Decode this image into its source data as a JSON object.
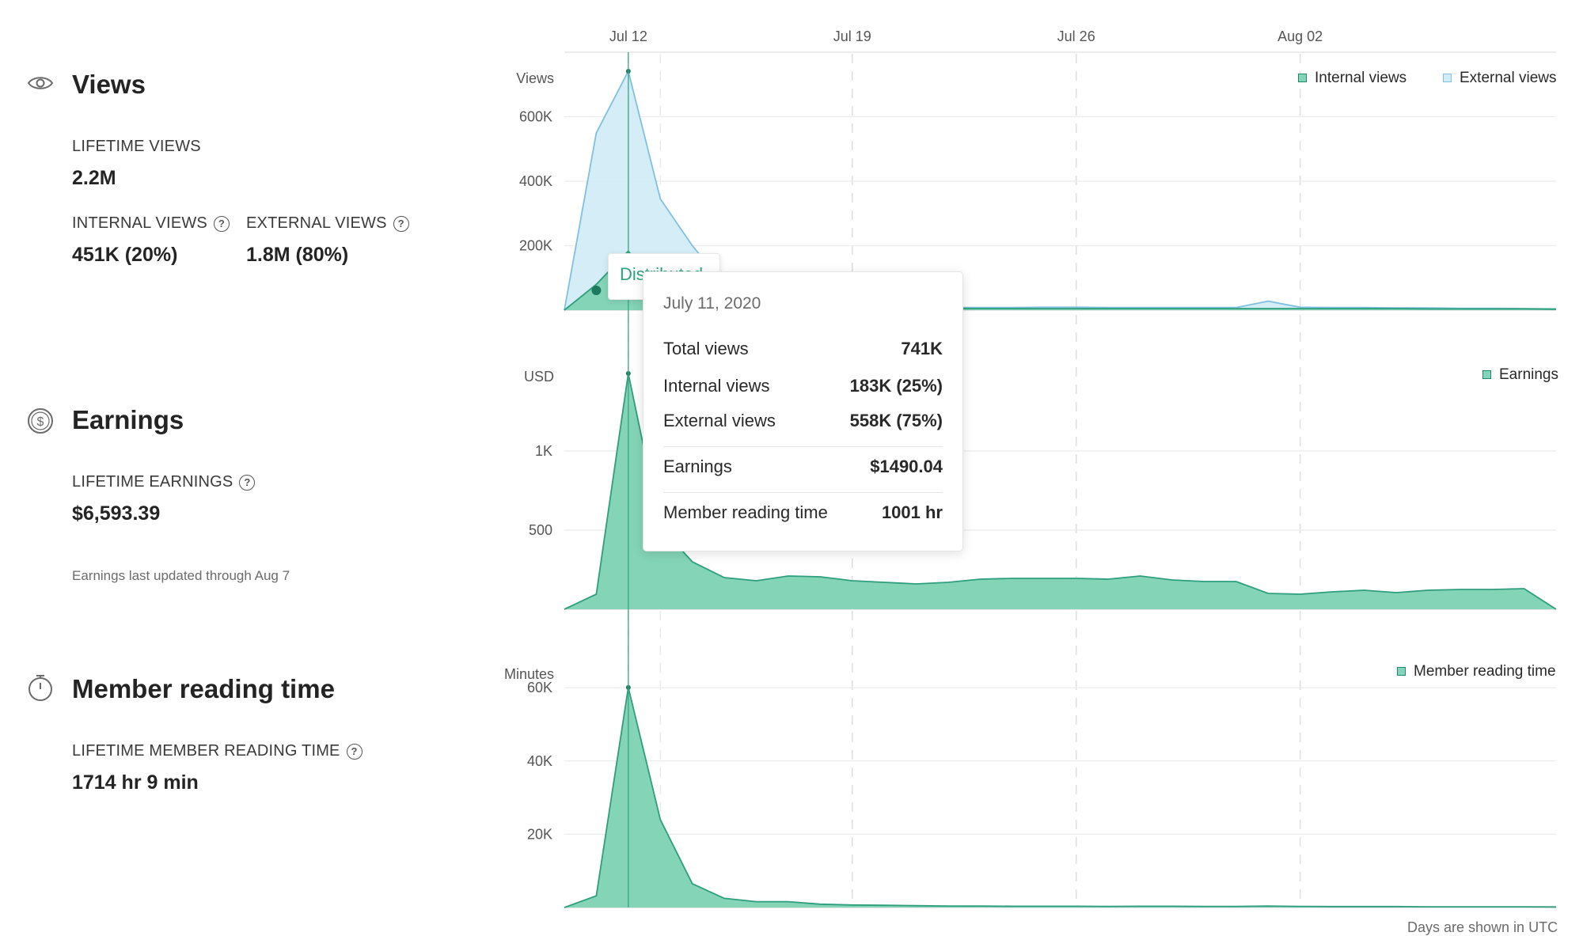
{
  "x_axis": {
    "ticks": [
      {
        "label": "Jul 12",
        "day": 12
      },
      {
        "label": "Jul 19",
        "day": 19
      },
      {
        "label": "Jul 26",
        "day": 26
      },
      {
        "label": "Aug 02",
        "day": 33
      }
    ],
    "footer": "Days are shown in UTC"
  },
  "views": {
    "title": "Views",
    "lifetime_label": "LIFETIME VIEWS",
    "lifetime_value": "2.2M",
    "internal_label": "INTERNAL VIEWS",
    "internal_value": "451K (20%)",
    "external_label": "EXTERNAL VIEWS",
    "external_value": "1.8M (80%)",
    "y_unit": "Views",
    "legend_internal": "Internal views",
    "legend_external": "External views"
  },
  "earnings": {
    "title": "Earnings",
    "lifetime_label": "LIFETIME EARNINGS",
    "lifetime_value": "$6,593.39",
    "note": "Earnings last updated through Aug 7",
    "y_unit": "USD",
    "legend": "Earnings"
  },
  "reading": {
    "title": "Member reading time",
    "lifetime_label": "LIFETIME MEMBER READING TIME",
    "lifetime_value": "1714 hr 9 min",
    "y_unit": "Minutes",
    "legend": "Member reading time"
  },
  "callout": {
    "label": "Distributed"
  },
  "tooltip": {
    "date": "July 11, 2020",
    "rows": [
      {
        "label": "Total views",
        "value": "741K"
      },
      {
        "label": "Internal views",
        "value": "183K (25%)"
      },
      {
        "label": "External views",
        "value": "558K (75%)"
      },
      {
        "label": "Earnings",
        "value": "$1490.04"
      },
      {
        "label": "Member reading time",
        "value": "1001 hr"
      }
    ]
  },
  "chart_data": [
    {
      "type": "area",
      "title": "",
      "ylabel": "Views",
      "x": [
        "Jul 10",
        "Jul 11",
        "Jul 12",
        "Jul 13",
        "Jul 14",
        "Jul 15",
        "Jul 16",
        "Jul 17",
        "Jul 18",
        "Jul 19",
        "Jul 20",
        "Jul 21",
        "Jul 22",
        "Jul 23",
        "Jul 24",
        "Jul 25",
        "Jul 26",
        "Jul 27",
        "Jul 28",
        "Jul 29",
        "Jul 30",
        "Jul 31",
        "Aug 01",
        "Aug 02",
        "Aug 03",
        "Aug 04",
        "Aug 05",
        "Aug 06",
        "Aug 07",
        "Aug 08",
        "Aug 09",
        "Aug 10"
      ],
      "ylim": [
        0,
        800000
      ],
      "yticks": [
        {
          "label": "200K",
          "value": 200000
        },
        {
          "label": "400K",
          "value": 400000
        },
        {
          "label": "600K",
          "value": 600000
        }
      ],
      "grid": true,
      "legend": "top-right",
      "series": [
        {
          "name": "Internal views",
          "color": "#84d4b8",
          "values": [
            0,
            80000,
            183000,
            60000,
            25000,
            12000,
            9000,
            8000,
            7000,
            6000,
            5000,
            5000,
            5000,
            5000,
            5000,
            5000,
            5000,
            5000,
            5000,
            5000,
            5000,
            5000,
            5000,
            5000,
            5000,
            5000,
            5000,
            4000,
            4000,
            4000,
            4000,
            3000
          ]
        },
        {
          "name": "External views",
          "color": "#d2ecf7",
          "values": [
            0,
            550000,
            741000,
            345000,
            200000,
            80000,
            20000,
            12000,
            10000,
            9000,
            8000,
            8000,
            8000,
            8000,
            8000,
            9000,
            9000,
            8000,
            8000,
            8000,
            8000,
            8000,
            28000,
            9000,
            8000,
            8000,
            7000,
            7000,
            6000,
            6000,
            5000,
            4000
          ]
        }
      ]
    },
    {
      "type": "area",
      "title": "",
      "ylabel": "USD",
      "x": [
        "Jul 10",
        "Jul 11",
        "Jul 12",
        "Jul 13",
        "Jul 14",
        "Jul 15",
        "Jul 16",
        "Jul 17",
        "Jul 18",
        "Jul 19",
        "Jul 20",
        "Jul 21",
        "Jul 22",
        "Jul 23",
        "Jul 24",
        "Jul 25",
        "Jul 26",
        "Jul 27",
        "Jul 28",
        "Jul 29",
        "Jul 30",
        "Jul 31",
        "Aug 01",
        "Aug 02",
        "Aug 03",
        "Aug 04",
        "Aug 05",
        "Aug 06",
        "Aug 07",
        "Aug 08",
        "Aug 09",
        "Aug 10"
      ],
      "ylim": [
        0,
        1500
      ],
      "yticks": [
        {
          "label": "500",
          "value": 500
        },
        {
          "label": "1K",
          "value": 1000
        }
      ],
      "grid": true,
      "legend": "top-right",
      "series": [
        {
          "name": "Earnings",
          "color": "#84d4b8",
          "values": [
            0,
            95,
            1490.04,
            520,
            300,
            200,
            180,
            210,
            205,
            180,
            170,
            160,
            170,
            190,
            195,
            195,
            195,
            190,
            210,
            185,
            175,
            175,
            100,
            95,
            110,
            120,
            105,
            120,
            125,
            125,
            130,
            0
          ]
        }
      ]
    },
    {
      "type": "area",
      "title": "",
      "ylabel": "Minutes",
      "x": [
        "Jul 10",
        "Jul 11",
        "Jul 12",
        "Jul 13",
        "Jul 14",
        "Jul 15",
        "Jul 16",
        "Jul 17",
        "Jul 18",
        "Jul 19",
        "Jul 20",
        "Jul 21",
        "Jul 22",
        "Jul 23",
        "Jul 24",
        "Jul 25",
        "Jul 26",
        "Jul 27",
        "Jul 28",
        "Jul 29",
        "Jul 30",
        "Jul 31",
        "Aug 01",
        "Aug 02",
        "Aug 03",
        "Aug 04",
        "Aug 05",
        "Aug 06",
        "Aug 07",
        "Aug 08",
        "Aug 09",
        "Aug 10"
      ],
      "ylim": [
        0,
        65000
      ],
      "yticks": [
        {
          "label": "20K",
          "value": 20000
        },
        {
          "label": "40K",
          "value": 40000
        },
        {
          "label": "60K",
          "value": 60000
        }
      ],
      "grid": true,
      "legend": "top-right",
      "series": [
        {
          "name": "Member reading time",
          "color": "#84d4b8",
          "values": [
            0,
            3200,
            60060,
            24000,
            6500,
            2500,
            1600,
            1600,
            900,
            700,
            600,
            500,
            400,
            400,
            350,
            350,
            350,
            300,
            350,
            350,
            300,
            300,
            400,
            300,
            250,
            250,
            250,
            200,
            200,
            200,
            200,
            150
          ]
        }
      ]
    }
  ]
}
